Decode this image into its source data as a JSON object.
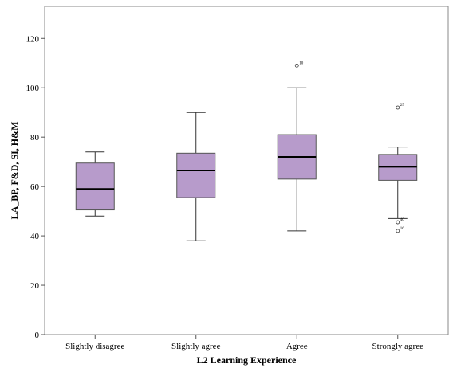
{
  "chart_data": {
    "type": "boxplot",
    "title": "",
    "xlabel": "L2 Learning Experience",
    "ylabel": "LA_BP, F&D, SI, H&M",
    "ylim": [
      0,
      133
    ],
    "yticks": [
      0,
      20,
      40,
      60,
      80,
      100,
      120
    ],
    "grid": false,
    "colors": {
      "box_fill": "#b79bcb",
      "box_stroke": "#555555",
      "frame": "#888888"
    },
    "categories": [
      "Slightly disagree",
      "Slightly agree",
      "Agree",
      "Strongly agree"
    ],
    "boxes": [
      {
        "category": "Slightly disagree",
        "whisker_low": 48,
        "q1": 50.5,
        "median": 59,
        "q3": 69.5,
        "whisker_high": 74,
        "outliers": []
      },
      {
        "category": "Slightly agree",
        "whisker_low": 38,
        "q1": 55.5,
        "median": 66.5,
        "q3": 73.5,
        "whisker_high": 90,
        "outliers": []
      },
      {
        "category": "Agree",
        "whisker_low": 42,
        "q1": 63,
        "median": 72,
        "q3": 81,
        "whisker_high": 100,
        "outliers": [
          {
            "value": 109,
            "label": "10"
          }
        ]
      },
      {
        "category": "Strongly agree",
        "whisker_low": 47,
        "q1": 62.5,
        "median": 68,
        "q3": 73,
        "whisker_high": 76,
        "outliers": [
          {
            "value": 92,
            "label": "25"
          },
          {
            "value": 45.5,
            "label": "40"
          },
          {
            "value": 42,
            "label": "16"
          }
        ]
      }
    ]
  }
}
